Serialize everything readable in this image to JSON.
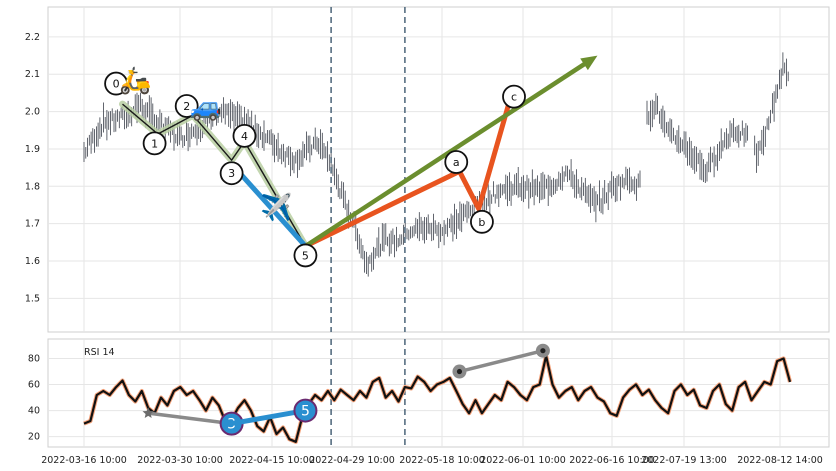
{
  "chart_data": [
    {
      "type": "candlestick-with-wave-annotations",
      "ylim": [
        1.41,
        2.28
      ],
      "yticks": [
        "1.5",
        "1.6",
        "1.7",
        "1.8",
        "1.9",
        "2.0",
        "2.1",
        "2.2"
      ],
      "x_tick_labels": [
        "2022-03-16 10:00",
        "2022-03-30 10:00",
        "2022-04-15 10:00",
        "2022-04-29 10:00",
        "2022-05-18 10:00",
        "2022-06-01 10:00",
        "2022-06-16 10:00",
        "2022-07-19 13:00",
        "2022-08-12 14:00"
      ],
      "grid": true,
      "price_trace": [
        {
          "x": 0,
          "y": 1.89
        },
        {
          "x": 3,
          "y": 1.93
        },
        {
          "x": 6,
          "y": 1.97
        },
        {
          "x": 10,
          "y": 1.98
        },
        {
          "x": 14,
          "y": 1.99
        },
        {
          "x": 17,
          "y": 2.02
        },
        {
          "x": 23,
          "y": 1.97
        },
        {
          "x": 30,
          "y": 1.93
        },
        {
          "x": 36,
          "y": 1.96
        },
        {
          "x": 43,
          "y": 2.0
        },
        {
          "x": 50,
          "y": 1.97
        },
        {
          "x": 57,
          "y": 1.93
        },
        {
          "x": 62,
          "y": 1.89
        },
        {
          "x": 66,
          "y": 1.87
        },
        {
          "x": 70,
          "y": 1.9
        },
        {
          "x": 73,
          "y": 1.92
        },
        {
          "x": 77,
          "y": 1.86
        },
        {
          "x": 81,
          "y": 1.76
        },
        {
          "x": 85,
          "y": 1.68
        },
        {
          "x": 88,
          "y": 1.59
        },
        {
          "x": 91,
          "y": 1.63
        },
        {
          "x": 94,
          "y": 1.66
        },
        {
          "x": 97,
          "y": 1.65
        },
        {
          "x": 101,
          "y": 1.68
        },
        {
          "x": 106,
          "y": 1.69
        },
        {
          "x": 112,
          "y": 1.68
        },
        {
          "x": 118,
          "y": 1.72
        },
        {
          "x": 124,
          "y": 1.76
        },
        {
          "x": 130,
          "y": 1.79
        },
        {
          "x": 136,
          "y": 1.8
        },
        {
          "x": 142,
          "y": 1.79
        },
        {
          "x": 147,
          "y": 1.81
        },
        {
          "x": 150,
          "y": 1.84
        },
        {
          "x": 154,
          "y": 1.8
        },
        {
          "x": 158,
          "y": 1.76
        },
        {
          "x": 161,
          "y": 1.76
        },
        {
          "x": 165,
          "y": 1.8
        },
        {
          "x": 170,
          "y": 1.82
        },
        {
          "x": 173,
          "y": 1.8
        },
        {
          "x": 175,
          "y": 1.98
        },
        {
          "x": 178,
          "y": 2.02
        },
        {
          "x": 182,
          "y": 1.94
        },
        {
          "x": 186,
          "y": 1.92
        },
        {
          "x": 190,
          "y": 1.88
        },
        {
          "x": 194,
          "y": 1.84
        },
        {
          "x": 198,
          "y": 1.9
        },
        {
          "x": 202,
          "y": 1.95
        },
        {
          "x": 206,
          "y": 1.94
        },
        {
          "x": 210,
          "y": 1.88
        },
        {
          "x": 213,
          "y": 1.96
        },
        {
          "x": 216,
          "y": 2.06
        },
        {
          "x": 218,
          "y": 2.12
        },
        {
          "x": 220,
          "y": 2.08
        }
      ],
      "dashed_vlines_at_x": [
        77,
        100
      ],
      "waves": [
        {
          "name": "impulse",
          "color": "#1a1a1a",
          "halo": "#b9cfa2",
          "points": [
            {
              "label": "0",
              "x": 12,
              "y": 2.02
            },
            {
              "label": "1",
              "x": 23,
              "y": 1.94
            },
            {
              "label": "2",
              "x": 34,
              "y": 1.99
            },
            {
              "label": "3",
              "x": 46,
              "y": 1.87
            },
            {
              "label": "4",
              "x": 50,
              "y": 1.92
            },
            {
              "label": "5",
              "x": 69,
              "y": 1.64
            }
          ]
        },
        {
          "name": "blue-leg",
          "color": "#2a8fd0",
          "points": [
            {
              "x": 46,
              "y": 1.86
            },
            {
              "x": 69,
              "y": 1.64
            }
          ]
        },
        {
          "name": "correction",
          "color": "#e8541f",
          "points": [
            {
              "label": "",
              "x": 69,
              "y": 1.64
            },
            {
              "label": "a",
              "x": 117,
              "y": 1.84
            },
            {
              "label": "b",
              "x": 123,
              "y": 1.74
            },
            {
              "label": "c",
              "x": 133,
              "y": 2.04
            }
          ]
        },
        {
          "name": "trend-arrow",
          "color": "#6b8e2e",
          "points": [
            {
              "x": 69,
              "y": 1.64
            },
            {
              "x": 160,
              "y": 2.15
            }
          ]
        }
      ],
      "label_positions": [
        {
          "label": "0",
          "x": 10,
          "y": 2.075
        },
        {
          "label": "1",
          "x": 22,
          "y": 1.915
        },
        {
          "label": "2",
          "x": 32,
          "y": 2.015
        },
        {
          "label": "3",
          "x": 46,
          "y": 1.835
        },
        {
          "label": "4",
          "x": 50,
          "y": 1.935
        },
        {
          "label": "5",
          "x": 69,
          "y": 1.615
        },
        {
          "label": "a",
          "x": 116,
          "y": 1.865
        },
        {
          "label": "b",
          "x": 124,
          "y": 1.705
        },
        {
          "label": "c",
          "x": 134,
          "y": 2.04
        }
      ],
      "emoji_icons": [
        {
          "name": "scooter-icon",
          "glyph": "🛵",
          "x": 16,
          "y": 2.06
        },
        {
          "name": "car-icon",
          "glyph": "🚙",
          "x": 38,
          "y": 1.99
        },
        {
          "name": "airplane-icon",
          "glyph": "✈️",
          "x": 60,
          "y": 1.72
        }
      ]
    },
    {
      "type": "line",
      "series": [
        {
          "name": "RSI 14"
        }
      ],
      "ylim": [
        12,
        95
      ],
      "yticks": [
        "20",
        "40",
        "60",
        "80"
      ],
      "rsi_points": [
        {
          "x": 0,
          "y": 30
        },
        {
          "x": 2,
          "y": 32
        },
        {
          "x": 4,
          "y": 52
        },
        {
          "x": 6,
          "y": 55
        },
        {
          "x": 8,
          "y": 52
        },
        {
          "x": 10,
          "y": 58
        },
        {
          "x": 12,
          "y": 63
        },
        {
          "x": 14,
          "y": 52
        },
        {
          "x": 16,
          "y": 47
        },
        {
          "x": 18,
          "y": 55
        },
        {
          "x": 20,
          "y": 42
        },
        {
          "x": 22,
          "y": 38
        },
        {
          "x": 24,
          "y": 50
        },
        {
          "x": 26,
          "y": 44
        },
        {
          "x": 28,
          "y": 55
        },
        {
          "x": 30,
          "y": 58
        },
        {
          "x": 32,
          "y": 52
        },
        {
          "x": 34,
          "y": 55
        },
        {
          "x": 36,
          "y": 48
        },
        {
          "x": 38,
          "y": 40
        },
        {
          "x": 40,
          "y": 50
        },
        {
          "x": 42,
          "y": 44
        },
        {
          "x": 44,
          "y": 32
        },
        {
          "x": 46,
          "y": 33
        },
        {
          "x": 48,
          "y": 42
        },
        {
          "x": 50,
          "y": 48
        },
        {
          "x": 52,
          "y": 40
        },
        {
          "x": 54,
          "y": 28
        },
        {
          "x": 56,
          "y": 24
        },
        {
          "x": 58,
          "y": 35
        },
        {
          "x": 60,
          "y": 22
        },
        {
          "x": 62,
          "y": 27
        },
        {
          "x": 64,
          "y": 18
        },
        {
          "x": 66,
          "y": 16
        },
        {
          "x": 68,
          "y": 35
        },
        {
          "x": 70,
          "y": 45
        },
        {
          "x": 72,
          "y": 52
        },
        {
          "x": 74,
          "y": 48
        },
        {
          "x": 76,
          "y": 55
        },
        {
          "x": 78,
          "y": 48
        },
        {
          "x": 80,
          "y": 56
        },
        {
          "x": 82,
          "y": 52
        },
        {
          "x": 84,
          "y": 48
        },
        {
          "x": 86,
          "y": 55
        },
        {
          "x": 88,
          "y": 50
        },
        {
          "x": 90,
          "y": 62
        },
        {
          "x": 92,
          "y": 65
        },
        {
          "x": 94,
          "y": 50
        },
        {
          "x": 96,
          "y": 55
        },
        {
          "x": 98,
          "y": 47
        },
        {
          "x": 100,
          "y": 58
        },
        {
          "x": 102,
          "y": 57
        },
        {
          "x": 104,
          "y": 66
        },
        {
          "x": 106,
          "y": 62
        },
        {
          "x": 108,
          "y": 55
        },
        {
          "x": 110,
          "y": 60
        },
        {
          "x": 112,
          "y": 62
        },
        {
          "x": 114,
          "y": 65
        },
        {
          "x": 116,
          "y": 55
        },
        {
          "x": 118,
          "y": 45
        },
        {
          "x": 120,
          "y": 38
        },
        {
          "x": 122,
          "y": 48
        },
        {
          "x": 124,
          "y": 38
        },
        {
          "x": 126,
          "y": 45
        },
        {
          "x": 128,
          "y": 52
        },
        {
          "x": 130,
          "y": 48
        },
        {
          "x": 132,
          "y": 62
        },
        {
          "x": 134,
          "y": 58
        },
        {
          "x": 136,
          "y": 52
        },
        {
          "x": 138,
          "y": 48
        },
        {
          "x": 140,
          "y": 58
        },
        {
          "x": 142,
          "y": 60
        },
        {
          "x": 144,
          "y": 82
        },
        {
          "x": 146,
          "y": 60
        },
        {
          "x": 148,
          "y": 50
        },
        {
          "x": 150,
          "y": 55
        },
        {
          "x": 152,
          "y": 58
        },
        {
          "x": 154,
          "y": 48
        },
        {
          "x": 156,
          "y": 55
        },
        {
          "x": 158,
          "y": 58
        },
        {
          "x": 160,
          "y": 50
        },
        {
          "x": 162,
          "y": 47
        },
        {
          "x": 164,
          "y": 38
        },
        {
          "x": 166,
          "y": 36
        },
        {
          "x": 168,
          "y": 50
        },
        {
          "x": 170,
          "y": 56
        },
        {
          "x": 172,
          "y": 60
        },
        {
          "x": 174,
          "y": 52
        },
        {
          "x": 176,
          "y": 56
        },
        {
          "x": 178,
          "y": 48
        },
        {
          "x": 180,
          "y": 42
        },
        {
          "x": 182,
          "y": 38
        },
        {
          "x": 184,
          "y": 55
        },
        {
          "x": 186,
          "y": 60
        },
        {
          "x": 188,
          "y": 52
        },
        {
          "x": 190,
          "y": 56
        },
        {
          "x": 192,
          "y": 44
        },
        {
          "x": 194,
          "y": 42
        },
        {
          "x": 196,
          "y": 55
        },
        {
          "x": 198,
          "y": 60
        },
        {
          "x": 200,
          "y": 45
        },
        {
          "x": 202,
          "y": 40
        },
        {
          "x": 204,
          "y": 58
        },
        {
          "x": 206,
          "y": 62
        },
        {
          "x": 208,
          "y": 48
        },
        {
          "x": 210,
          "y": 55
        },
        {
          "x": 212,
          "y": 62
        },
        {
          "x": 214,
          "y": 60
        },
        {
          "x": 216,
          "y": 78
        },
        {
          "x": 218,
          "y": 80
        },
        {
          "x": 220,
          "y": 62
        }
      ],
      "divergence_lines": [
        {
          "name": "bearish-divergence",
          "color": "#8a8a8a",
          "from": {
            "x": 20,
            "y": 38
          },
          "to": {
            "x": 46,
            "y": 30
          },
          "start_marker": "star",
          "end_label": "3",
          "end_marker_color": "#2a8fd0"
        },
        {
          "name": "wave-3-5-link",
          "color": "#2a8fd0",
          "from": {
            "x": 46,
            "y": 30
          },
          "to": {
            "x": 69,
            "y": 40
          },
          "end_label": "5",
          "end_marker_color": "#2a8fd0"
        },
        {
          "name": "bullish-divergence",
          "color": "#8a8a8a",
          "from": {
            "x": 117,
            "y": 70
          },
          "to": {
            "x": 143,
            "y": 86
          },
          "start_marker": "dot",
          "end_marker": "dot"
        }
      ]
    }
  ]
}
